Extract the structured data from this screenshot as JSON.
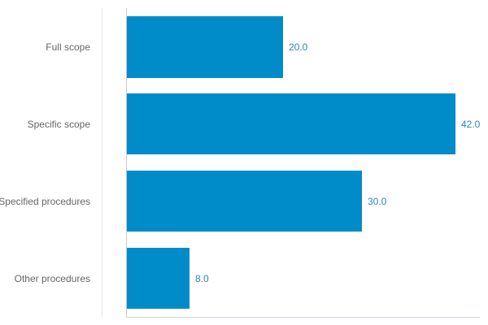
{
  "chart_data": {
    "type": "bar",
    "orientation": "horizontal",
    "title": "",
    "xlabel": "",
    "ylabel": "",
    "categories": [
      "Full scope",
      "Specific scope",
      "Specified procedures",
      "Other procedures"
    ],
    "values": [
      20.0,
      42.0,
      30.0,
      8.0
    ],
    "value_labels": [
      "20.0",
      "42.0",
      "30.0",
      "8.0"
    ],
    "xlim": [
      0,
      45
    ],
    "grid": false,
    "legend": null,
    "bar_color": "#008bc9",
    "label_color": "#2a88b8"
  }
}
